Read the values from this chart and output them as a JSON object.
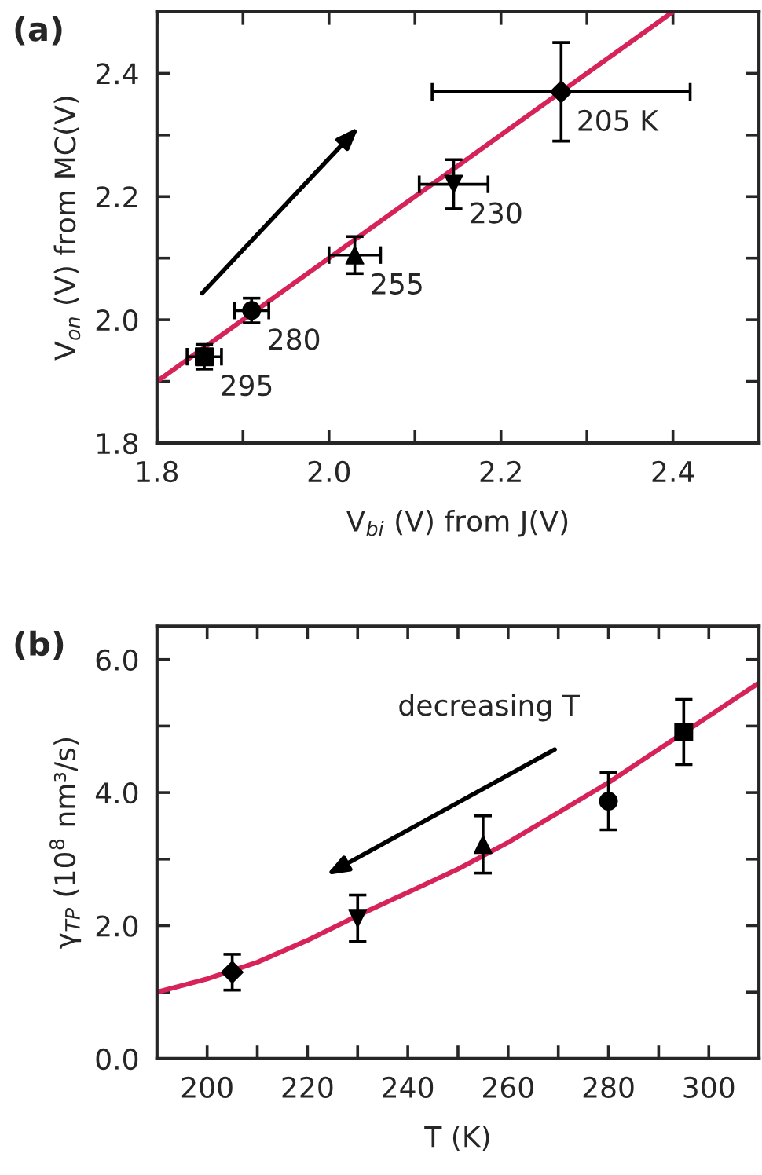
{
  "chart_data": [
    {
      "type": "scatter",
      "title": "(a)",
      "xlabel": "V$_{bi}$ (V) from J(V)",
      "ylabel": "V$_{on}$ (V) from MC(V)",
      "xlim": [
        1.8,
        2.5
      ],
      "ylim": [
        1.8,
        2.5
      ],
      "xticks": [
        1.8,
        {
          "value": 1.9,
          "label": null
        },
        {
          "value": 2.0,
          "label": "2.0"
        },
        {
          "value": 2.1,
          "label": null
        },
        2.2,
        {
          "value": 2.3,
          "label": null
        },
        2.4
      ],
      "yticks": [
        1.8,
        {
          "value": 1.9,
          "label": null
        },
        {
          "value": 2.0,
          "label": "2.0"
        },
        {
          "value": 2.1,
          "label": null
        },
        2.2,
        {
          "value": 2.3,
          "label": null
        },
        2.4
      ],
      "series": [
        {
          "color": "#000000",
          "marker": "square",
          "x": [
            1.855
          ],
          "values": [
            1.94
          ],
          "errors": [
            0.02
          ],
          "xerrors": [
            0.02
          ]
        },
        {
          "color": "#000000",
          "marker": "circle",
          "x": [
            1.91
          ],
          "values": [
            2.015
          ],
          "errors": [
            0.02
          ],
          "xerrors": [
            0.02
          ]
        },
        {
          "color": "#000000",
          "marker": "triangle",
          "x": [
            2.03
          ],
          "values": [
            2.105
          ],
          "errors": [
            0.03
          ],
          "xerrors": [
            0.03
          ]
        },
        {
          "color": "#000000",
          "marker": "triangle_down",
          "x": [
            2.145
          ],
          "values": [
            2.22
          ],
          "errors": [
            0.04
          ],
          "xerrors": [
            0.04
          ]
        },
        {
          "color": "#000000",
          "marker": "diamond",
          "x": [
            2.27
          ],
          "values": [
            2.37
          ],
          "errors": [
            0.08
          ],
          "xerrors": [
            0.15
          ]
        },
        {
          "type": "line",
          "color": "#d6245a",
          "x": [
            1.8,
            2.4
          ],
          "values": [
            1.9,
            2.5
          ]
        }
      ],
      "annotations": [
        {
          "text": "295",
          "x": 1.855,
          "y": 1.94
        },
        {
          "text": "280",
          "x": 1.91,
          "y": 2.015
        },
        {
          "text": "255",
          "x": 2.03,
          "y": 2.105
        },
        {
          "text": "230",
          "x": 2.145,
          "y": 2.22
        },
        {
          "text": "205 K",
          "x": 2.27,
          "y": 2.37
        }
      ]
    },
    {
      "type": "scatter",
      "title": "(b)",
      "xlabel": "T (K)",
      "ylabel": "γ$_{TP}$ (10$^{8}$ nm³/s)",
      "xlim": [
        190,
        310
      ],
      "ylim": [
        0,
        6.5
      ],
      "xticks": [
        200,
        {
          "value": 210,
          "label": null
        },
        220,
        {
          "value": 230,
          "label": null
        },
        240,
        {
          "value": 250,
          "label": null
        },
        260,
        {
          "value": 270,
          "label": null
        },
        280,
        {
          "value": 290,
          "label": null
        },
        300
      ],
      "yticks": [
        {
          "value": 0,
          "label": "0.0"
        },
        {
          "value": 1,
          "label": null
        },
        {
          "value": 2,
          "label": "2.0"
        },
        {
          "value": 3,
          "label": null
        },
        {
          "value": 4,
          "label": "4.0"
        },
        {
          "value": 5,
          "label": null
        },
        {
          "value": 6,
          "label": "6.0"
        }
      ],
      "series": [
        {
          "color": "#000000",
          "marker": "diamond",
          "x": [
            205
          ],
          "values": [
            1.3
          ],
          "errors": [
            0.27
          ]
        },
        {
          "color": "#000000",
          "marker": "triangle_down",
          "x": [
            230
          ],
          "values": [
            2.11
          ],
          "errors": [
            0.35
          ]
        },
        {
          "color": "#000000",
          "marker": "triangle",
          "x": [
            255
          ],
          "values": [
            3.22
          ],
          "errors": [
            0.43
          ]
        },
        {
          "color": "#000000",
          "marker": "circle",
          "x": [
            280
          ],
          "values": [
            3.87
          ],
          "errors": [
            0.43
          ]
        },
        {
          "color": "#000000",
          "marker": "square",
          "x": [
            295
          ],
          "values": [
            4.91
          ],
          "errors": [
            0.49
          ]
        },
        {
          "type": "line",
          "color": "#d6245a",
          "x": [
            190,
            200,
            210,
            220,
            230,
            240,
            250,
            260,
            270,
            280,
            290,
            300,
            310
          ],
          "values": [
            1.0,
            1.2,
            1.45,
            1.78,
            2.15,
            2.5,
            2.85,
            3.25,
            3.7,
            4.15,
            4.65,
            5.15,
            5.65
          ]
        }
      ],
      "annotations": [
        "decreasing T"
      ]
    }
  ]
}
